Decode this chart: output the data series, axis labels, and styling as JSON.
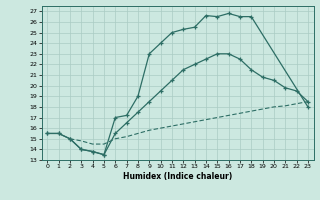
{
  "xlabel": "Humidex (Indice chaleur)",
  "bg_color": "#cce8e0",
  "line_color": "#2d6e65",
  "grid_color": "#aaccc4",
  "xlim": [
    -0.5,
    23.5
  ],
  "ylim": [
    13,
    27.5
  ],
  "xticks": [
    0,
    1,
    2,
    3,
    4,
    5,
    6,
    7,
    8,
    9,
    10,
    11,
    12,
    13,
    14,
    15,
    16,
    17,
    18,
    19,
    20,
    21,
    22,
    23
  ],
  "yticks": [
    13,
    14,
    15,
    16,
    17,
    18,
    19,
    20,
    21,
    22,
    23,
    24,
    25,
    26,
    27
  ],
  "line1_x": [
    0,
    1,
    2,
    3,
    4,
    5,
    6,
    7,
    8,
    9,
    10,
    11,
    12,
    13,
    14,
    15,
    16,
    17,
    18,
    23
  ],
  "line1_y": [
    15.5,
    15.5,
    15.0,
    14.0,
    13.8,
    13.5,
    17.0,
    17.2,
    19.0,
    23.0,
    24.0,
    25.0,
    25.3,
    25.5,
    26.6,
    26.5,
    26.8,
    26.5,
    26.5,
    18.0
  ],
  "line2_x": [
    2,
    3,
    4,
    5,
    6,
    7,
    8,
    9,
    10,
    11,
    12,
    13,
    14,
    15,
    16,
    17,
    18,
    19,
    20,
    21,
    22,
    23
  ],
  "line2_y": [
    15.0,
    14.8,
    14.5,
    14.5,
    15.0,
    15.2,
    15.5,
    15.8,
    16.0,
    16.2,
    16.4,
    16.6,
    16.8,
    17.0,
    17.2,
    17.4,
    17.6,
    17.8,
    18.0,
    18.1,
    18.3,
    18.5
  ],
  "line3_x": [
    0,
    1,
    2,
    3,
    4,
    5,
    6,
    7,
    8,
    9,
    10,
    11,
    12,
    13,
    14,
    15,
    16,
    17,
    18,
    19,
    20,
    21,
    22,
    23
  ],
  "line3_y": [
    15.5,
    15.5,
    15.0,
    14.0,
    13.8,
    13.5,
    15.5,
    16.5,
    17.5,
    18.5,
    19.5,
    20.5,
    21.5,
    22.0,
    22.5,
    23.0,
    23.0,
    22.5,
    21.5,
    20.8,
    20.5,
    19.8,
    19.5,
    18.5
  ]
}
